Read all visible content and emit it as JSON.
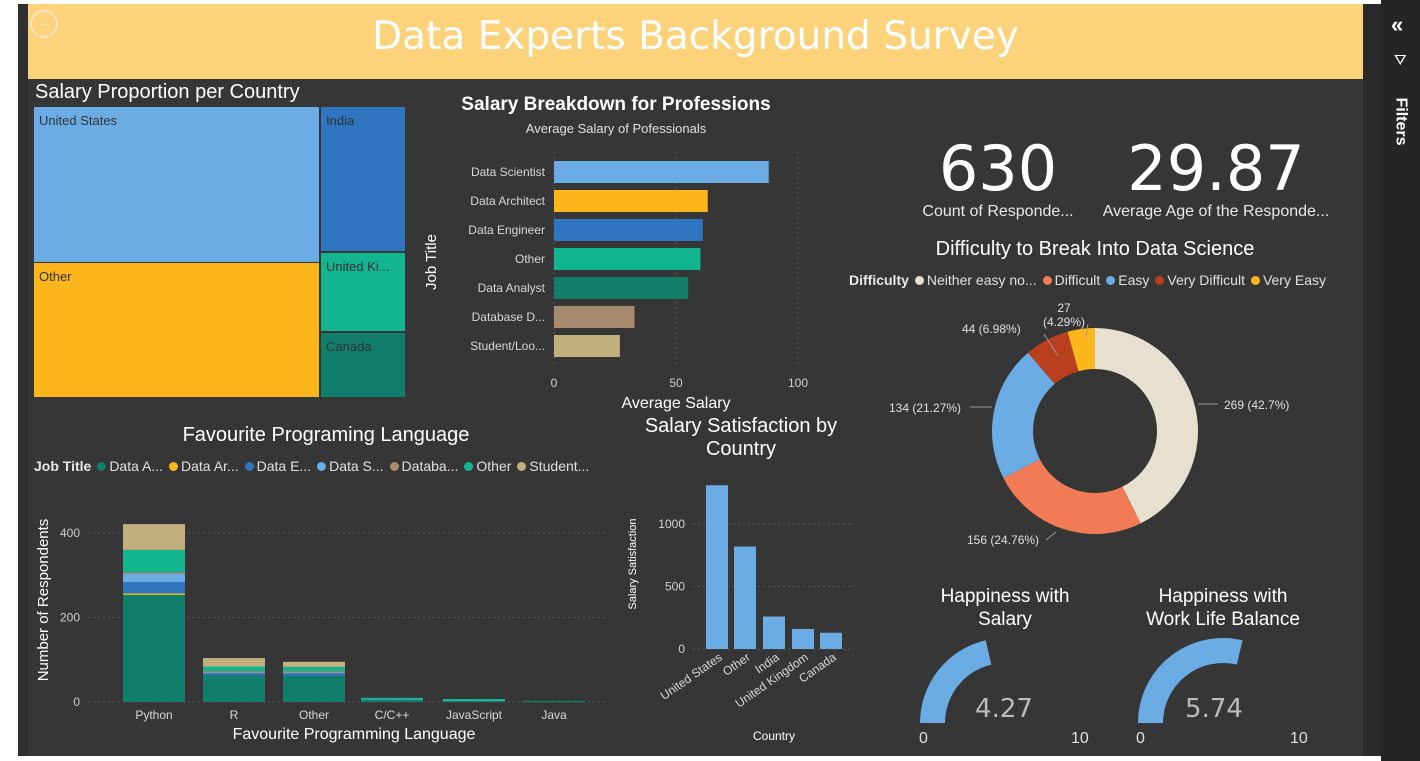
{
  "header": {
    "title": "Data Experts Background Survey"
  },
  "treemap": {
    "title": "Salary Proportion per Country",
    "cells": [
      {
        "label": "United States",
        "color": "#6cace4"
      },
      {
        "label": "Other",
        "color": "#fbb61b"
      },
      {
        "label": "India",
        "color": "#2f75c0"
      },
      {
        "label": "United Ki...",
        "color": "#13b490"
      },
      {
        "label": "Canada",
        "color": "#117e6c"
      }
    ]
  },
  "salary_breakdown": {
    "title": "Salary Breakdown for Professions",
    "subtitle": "Average Salary of Pofessionals",
    "xlabel": "Average Salary",
    "ylabel": "Job Title"
  },
  "favourite_language": {
    "title": "Favourite Programing Language",
    "legend_title": "Job Title",
    "legend": [
      {
        "label": "Data A...",
        "color": "#117e6c"
      },
      {
        "label": "Data Ar...",
        "color": "#fbb61b"
      },
      {
        "label": "Data E...",
        "color": "#2f75c0"
      },
      {
        "label": "Data S...",
        "color": "#6cace4"
      },
      {
        "label": "Databa...",
        "color": "#a88a6e"
      },
      {
        "label": "Other",
        "color": "#13b490"
      },
      {
        "label": "Student...",
        "color": "#c4b07e"
      }
    ],
    "xlabel": "Favourite Programming Language",
    "ylabel": "Number of Respondents"
  },
  "salary_satisfaction": {
    "title_line1": "Salary Satisfaction by",
    "title_line2": "Country",
    "xlabel": "Country",
    "ylabel": "Salary Satisfaction"
  },
  "kpis": {
    "count_value": "630",
    "count_label": "Count of Responde...",
    "age_value": "29.87",
    "age_label": "Average Age of the Responde..."
  },
  "difficulty": {
    "title": "Difficulty to Break Into Data Science",
    "legend_title": "Difficulty",
    "legend": [
      {
        "label": "Neither easy no...",
        "color": "#e8e0cf"
      },
      {
        "label": "Difficult",
        "color": "#f07b55"
      },
      {
        "label": "Easy",
        "color": "#6cace4"
      },
      {
        "label": "Very Difficult",
        "color": "#b8401f"
      },
      {
        "label": "Very Easy",
        "color": "#fbb61b"
      }
    ]
  },
  "happiness_salary": {
    "title_line1": "Happiness with",
    "title_line2": "Salary",
    "value": "4.27",
    "min": "0",
    "max": "10",
    "fraction": 0.427,
    "color": "#6cace4"
  },
  "happiness_balance": {
    "title_line1": "Happiness with",
    "title_line2": "Work Life Balance",
    "value": "5.74",
    "min": "0",
    "max": "10",
    "fraction": 0.574,
    "color": "#6cace4"
  },
  "filters_pane": {
    "label": "Filters"
  },
  "chart_data": [
    {
      "type": "treemap",
      "title": "Salary Proportion per Country",
      "categories": [
        "United States",
        "Other",
        "India",
        "United Ki...",
        "Canada"
      ],
      "values": [
        44,
        37,
        7,
        6,
        6
      ]
    },
    {
      "type": "bar",
      "orientation": "horizontal",
      "title": "Salary Breakdown for Professions",
      "subtitle": "Average Salary of Pofessionals",
      "categories": [
        "Data Scientist",
        "Data Architect",
        "Data Engineer",
        "Other",
        "Data Analyst",
        "Database D...",
        "Student/Loo..."
      ],
      "values": [
        88,
        63,
        61,
        60,
        55,
        33,
        27
      ],
      "colors": [
        "#6cace4",
        "#fbb61b",
        "#2f75c0",
        "#13b490",
        "#117e6c",
        "#a88a6e",
        "#c4b07e"
      ],
      "xlabel": "Average Salary",
      "ylabel": "Job Title",
      "xlim": [
        0,
        100
      ],
      "xticks": [
        0,
        50,
        100
      ],
      "grid": true
    },
    {
      "type": "bar",
      "stacked": true,
      "title": "Favourite Programing Language",
      "categories": [
        "Python",
        "R",
        "Other",
        "C/C++",
        "JavaScript",
        "Java"
      ],
      "series": [
        {
          "name": "Data A...",
          "values": [
            255,
            63,
            62,
            8,
            5,
            3
          ]
        },
        {
          "name": "Data Ar...",
          "values": [
            2,
            0,
            0,
            0,
            0,
            0
          ]
        },
        {
          "name": "Data E...",
          "values": [
            27,
            5,
            6,
            0,
            0,
            0
          ]
        },
        {
          "name": "Data S...",
          "values": [
            20,
            4,
            4,
            1,
            1,
            0
          ]
        },
        {
          "name": "Databa...",
          "values": [
            3,
            1,
            1,
            0,
            0,
            0
          ]
        },
        {
          "name": "Other",
          "values": [
            53,
            11,
            10,
            1,
            1,
            0
          ]
        },
        {
          "name": "Student...",
          "values": [
            61,
            20,
            12,
            0,
            0,
            0
          ]
        }
      ],
      "xlabel": "Favourite Programming Language",
      "ylabel": "Number of Respondents",
      "ylim": [
        0,
        450
      ],
      "yticks": [
        0,
        200,
        400
      ],
      "grid": true
    },
    {
      "type": "bar",
      "title": "Salary Satisfaction by Country",
      "categories": [
        "United States",
        "Other",
        "India",
        "United Kingdom",
        "Canada"
      ],
      "values": [
        1310,
        820,
        260,
        160,
        130
      ],
      "color": "#6cace4",
      "xlabel": "Country",
      "ylabel": "Salary Satisfaction",
      "ylim": [
        0,
        1400
      ],
      "yticks": [
        0,
        500,
        1000
      ],
      "grid": true
    },
    {
      "type": "pie",
      "donut": true,
      "title": "Difficulty to Break Into Data Science",
      "categories": [
        "Neither easy no...",
        "Difficult",
        "Easy",
        "Very Difficult",
        "Very Easy"
      ],
      "values": [
        269,
        156,
        134,
        44,
        27
      ],
      "labels": [
        "269 (42.7%)",
        "156 (24.76%)",
        "134 (21.27%)",
        "44 (6.98%)",
        "27 (4.29%)"
      ],
      "colors": [
        "#e8e0cf",
        "#f07b55",
        "#6cace4",
        "#b8401f",
        "#fbb61b"
      ]
    }
  ]
}
